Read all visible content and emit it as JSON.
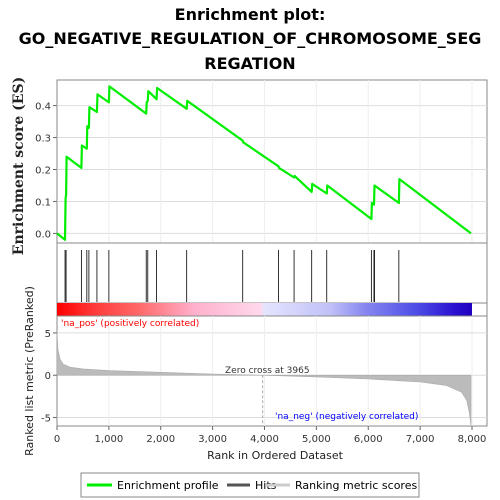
{
  "chart_data": {
    "type": "line",
    "title_lines": [
      "Enrichment plot:",
      "GO_NEGATIVE_REGULATION_OF_CHROMOSOME_SEG",
      "REGATION"
    ],
    "es_panel": {
      "ylabel": "Enrichment score (ES)",
      "ylim": [
        -0.03,
        0.48
      ],
      "yticks": [
        "0.0",
        "0.1",
        "0.2",
        "0.3",
        "0.4"
      ],
      "ytick_values": [
        0.0,
        0.1,
        0.2,
        0.3,
        0.4
      ],
      "series": [
        {
          "name": "Enrichment profile",
          "color": "#00ee00",
          "x": [
            0,
            155,
            165,
            175,
            185,
            470,
            480,
            575,
            585,
            615,
            625,
            770,
            780,
            1000,
            1010,
            1720,
            1730,
            1750,
            1760,
            1920,
            1930,
            2500,
            2510,
            3580,
            3590,
            4270,
            4280,
            4570,
            4580,
            4910,
            4920,
            5200,
            5210,
            6060,
            6070,
            6110,
            6120,
            6590,
            6600,
            7980
          ],
          "y": [
            0.0,
            -0.02,
            0.11,
            0.12,
            0.24,
            0.205,
            0.275,
            0.265,
            0.335,
            0.33,
            0.395,
            0.38,
            0.435,
            0.41,
            0.46,
            0.375,
            0.41,
            0.415,
            0.445,
            0.42,
            0.455,
            0.39,
            0.415,
            0.29,
            0.285,
            0.21,
            0.205,
            0.175,
            0.18,
            0.13,
            0.155,
            0.125,
            0.15,
            0.045,
            0.095,
            0.09,
            0.15,
            0.095,
            0.17,
            0.0
          ]
        }
      ]
    },
    "hits": [
      155,
      175,
      470,
      575,
      615,
      770,
      1000,
      1720,
      1750,
      1920,
      2500,
      3580,
      4270,
      4570,
      4910,
      5200,
      6060,
      6110,
      6120,
      6590
    ],
    "metric_panel": {
      "ylabel": "Ranked list metric (PreRanked)",
      "xlabel": "Rank in Ordered Dataset",
      "xlim": [
        0,
        8000
      ],
      "xticks": [
        "0",
        "1,000",
        "2,000",
        "3,000",
        "4,000",
        "5,000",
        "6,000",
        "7,000",
        "8,000"
      ],
      "xtick_values": [
        0,
        1000,
        2000,
        3000,
        4000,
        5000,
        6000,
        7000,
        8000
      ],
      "ylim": [
        -6,
        7
      ],
      "yticks": [
        "-5",
        "0",
        "5"
      ],
      "ytick_values": [
        -5,
        0,
        5
      ],
      "zero_cross_label": "Zero cross at 3965",
      "zero_cross": 3965,
      "pos_label": "'na_pos' (positively correlated)",
      "neg_label": "'na_neg' (negatively correlated)",
      "metric_profile": {
        "x": [
          0,
          20,
          60,
          120,
          250,
          500,
          1000,
          2000,
          3000,
          3965,
          5000,
          6000,
          7000,
          7500,
          7800,
          7900,
          7950,
          7980
        ],
        "y": [
          5.2,
          3.0,
          1.9,
          1.3,
          0.95,
          0.75,
          0.55,
          0.35,
          0.15,
          0.0,
          -0.2,
          -0.45,
          -0.8,
          -1.2,
          -2.0,
          -3.0,
          -4.5,
          -6.0
        ]
      }
    },
    "colors": {
      "es_line": "#00ee00",
      "hit_line": "#000000",
      "metric_fill": "#bbbbbb",
      "pos_text": "#ff0000",
      "neg_text": "#0000ff"
    },
    "legend": {
      "items": [
        {
          "label": "Enrichment profile",
          "color": "#00ee00"
        },
        {
          "label": "Hits",
          "color": "#555555"
        },
        {
          "label": "Ranking metric scores",
          "color": "#cccccc"
        }
      ]
    }
  }
}
